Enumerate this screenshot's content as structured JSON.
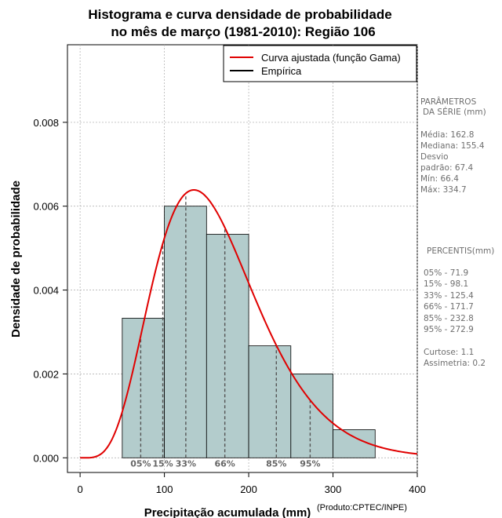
{
  "chart_data": {
    "type": "histogram",
    "title_line1": "Histograma e curva densidade de probabilidade",
    "title_line2": "no mês de março (1981-2010): Região 106",
    "xlabel": "Precipitação acumulada (mm)",
    "ylabel": "Densidade de probabilidade",
    "product_note": "(Produto:CPTEC/INPE)",
    "xlim": [
      -15,
      400
    ],
    "ylim": [
      -0.00035,
      0.00985
    ],
    "x_ticks": [
      0,
      100,
      200,
      300,
      400
    ],
    "x_tick_labels": [
      "0",
      "100",
      "200",
      "300",
      "400"
    ],
    "y_ticks": [
      0,
      0.002,
      0.004,
      0.006,
      0.008
    ],
    "y_tick_labels": [
      "0.000",
      "0.002",
      "0.004",
      "0.006",
      "0.008"
    ],
    "grid": true,
    "bins": [
      {
        "start": 50,
        "end": 100,
        "density": 0.00333
      },
      {
        "start": 100,
        "end": 150,
        "density": 0.006
      },
      {
        "start": 150,
        "end": 200,
        "density": 0.00533
      },
      {
        "start": 200,
        "end": 250,
        "density": 0.00267
      },
      {
        "start": 250,
        "end": 300,
        "density": 0.002
      },
      {
        "start": 300,
        "end": 350,
        "density": 0.00067
      }
    ],
    "fitted_curve": {
      "name": "Curva ajustada (função Gama)",
      "distribution": "gamma",
      "shape": 5.84,
      "scale": 27.9,
      "color": "#e00000"
    },
    "empirical": {
      "name": "Empírica",
      "color": "#000000"
    },
    "percentile_markers": [
      {
        "label": "05%",
        "value": 71.9
      },
      {
        "label": "15%",
        "value": 98.1
      },
      {
        "label": "33%",
        "value": 125.4
      },
      {
        "label": "66%",
        "value": 171.7
      },
      {
        "label": "85%",
        "value": 232.8
      },
      {
        "label": "95%",
        "value": 272.9
      }
    ],
    "legend_position": "top-right",
    "bar_color": "#b3cccc"
  },
  "side_panel": {
    "params_title_1": "PARÂMETROS",
    "params_title_2": "DA SÉRIE (mm)",
    "media": "Média:  162.8",
    "mediana": "Mediana:  155.4",
    "desvio_1": "Desvio",
    "desvio_2": "padrão:  67.4",
    "min": "Mín:  66.4",
    "max": "Máx:  334.7",
    "percentis_title": "PERCENTIS(mm)",
    "p05": "05% -  71.9",
    "p15": "15% -  98.1",
    "p33": "33% -  125.4",
    "p66": "66% -  171.7",
    "p85": "85% -  232.8",
    "p95": "95% -  272.9",
    "curtose": "Curtose:  1.1",
    "assimetria": "Assimetria:  0.2"
  }
}
